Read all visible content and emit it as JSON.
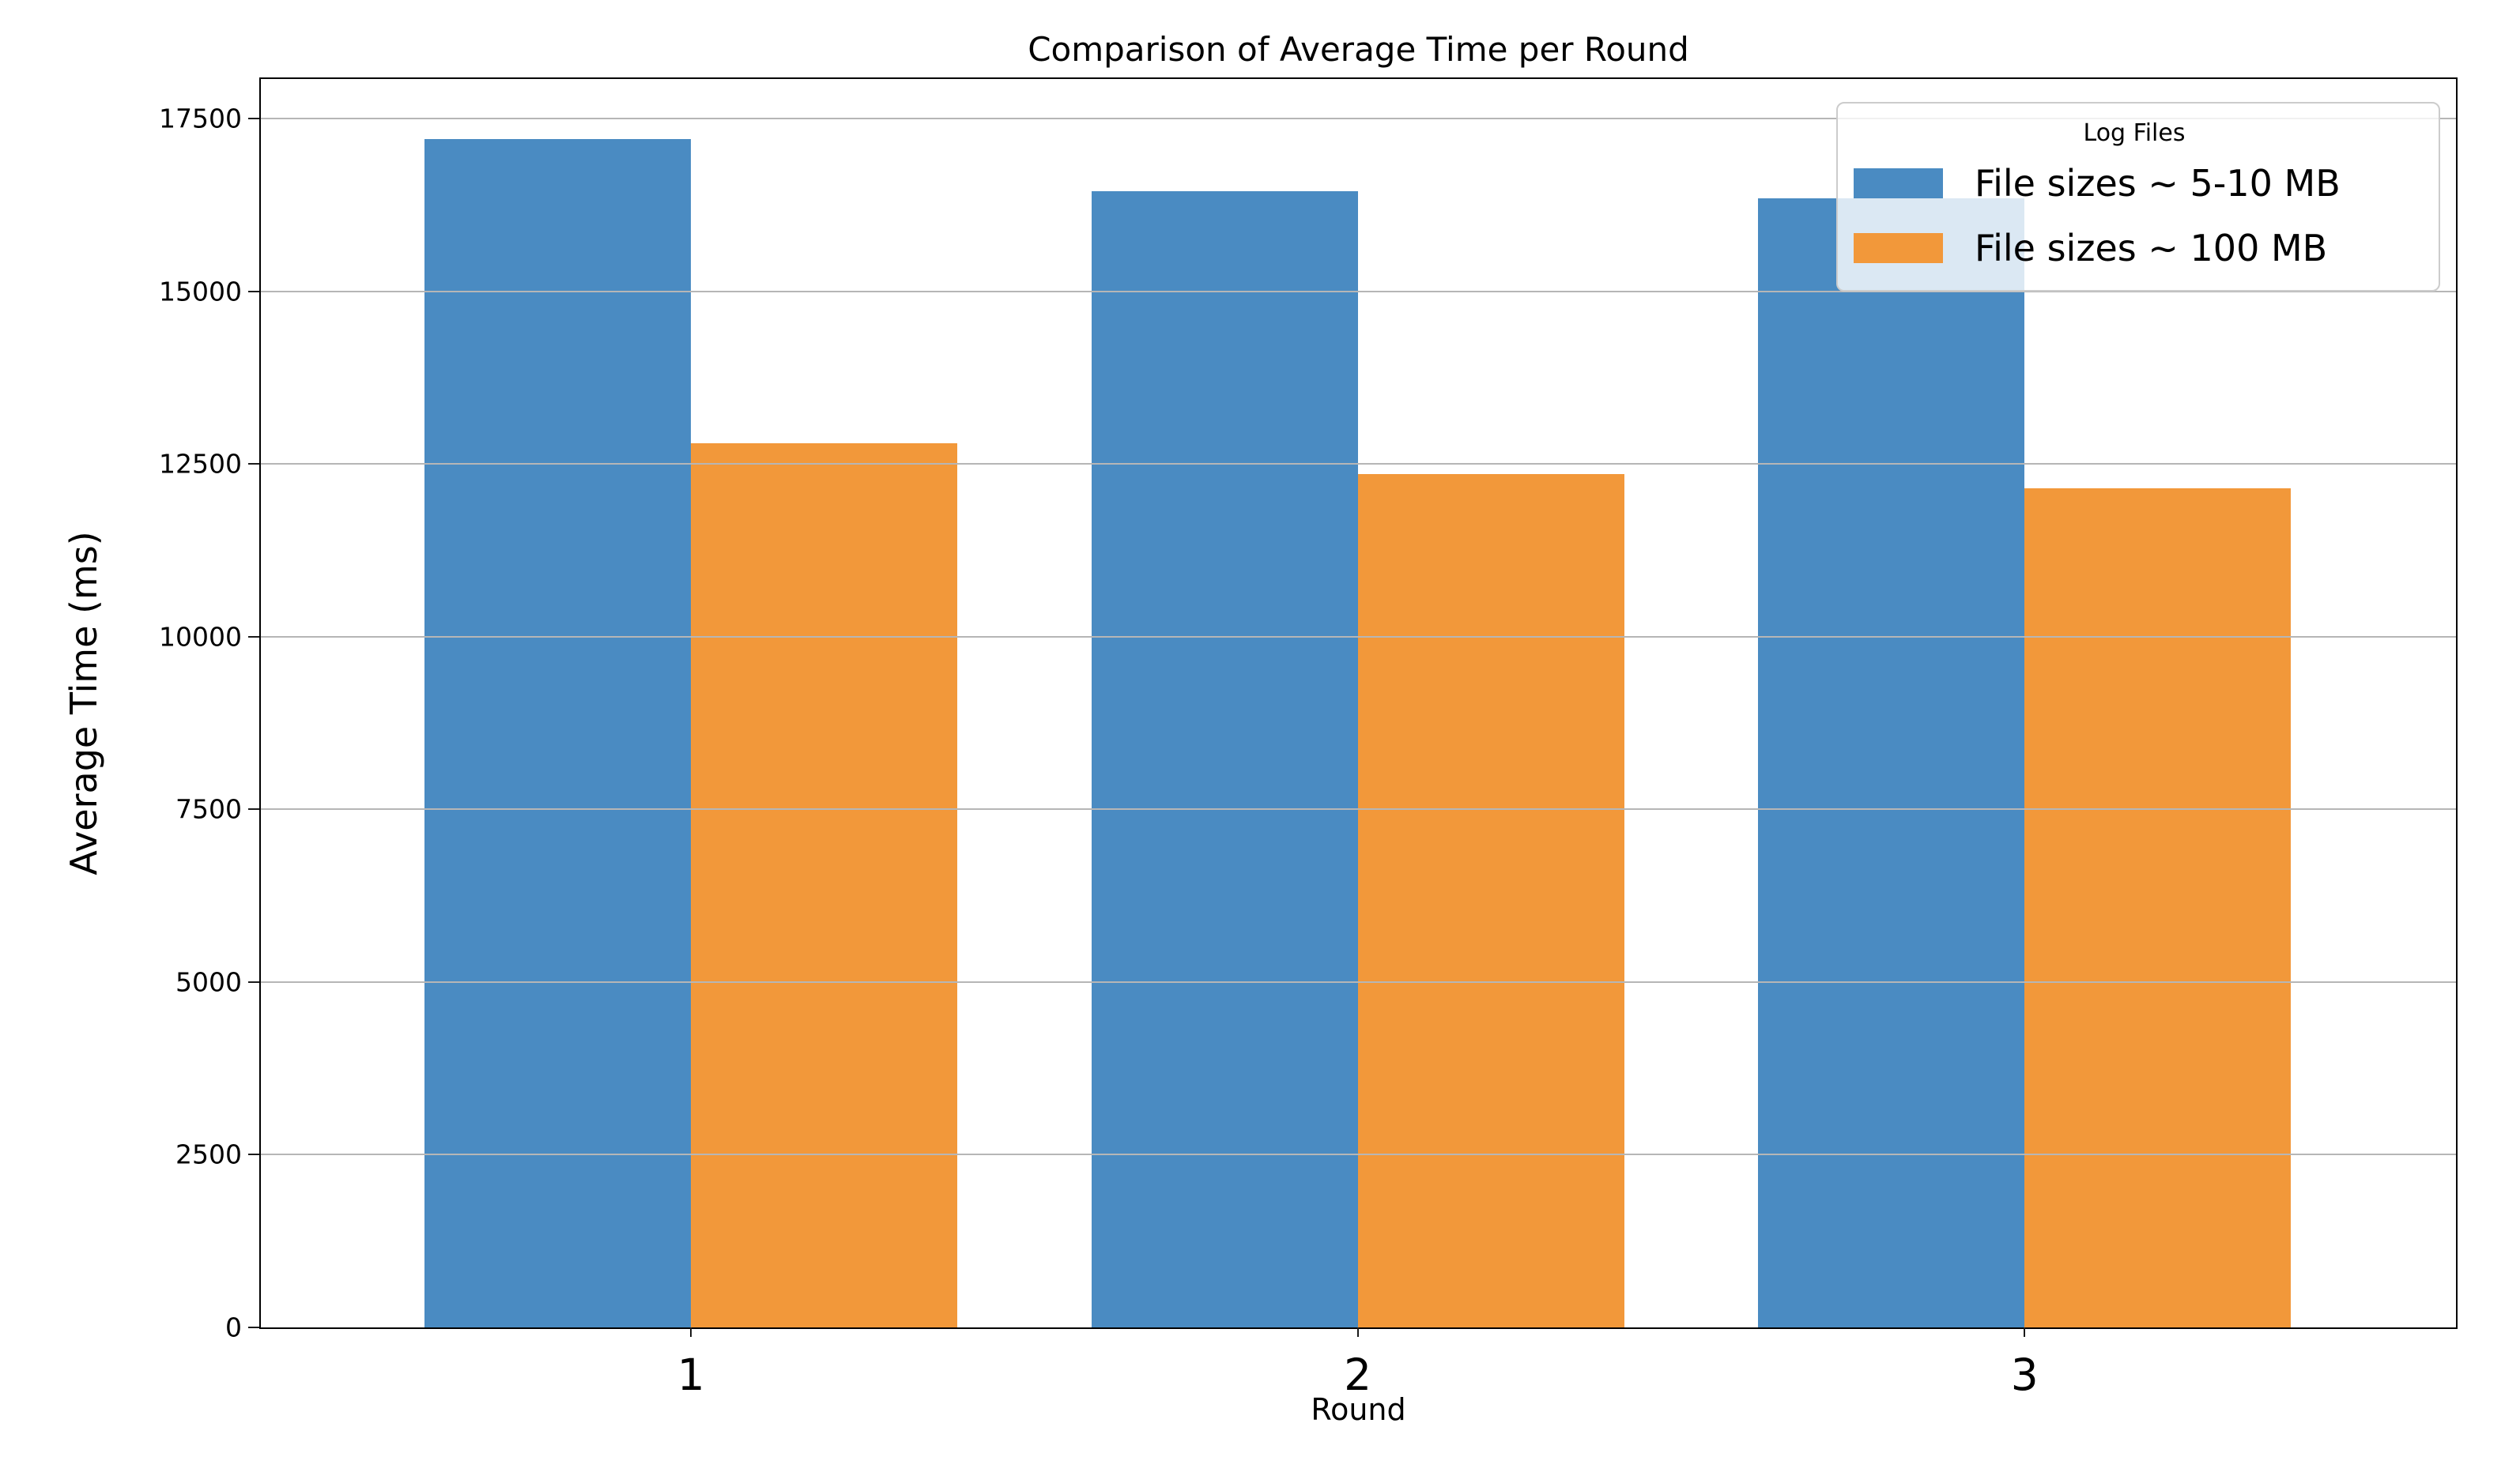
{
  "title": "Comparison of Average Time per Round",
  "axes": {
    "xlabel": "Round",
    "ylabel": "Average Time (ms)"
  },
  "legend": {
    "title": "Log Files"
  },
  "chart_data": {
    "type": "bar",
    "title": "Comparison of Average Time per Round",
    "xlabel": "Round",
    "ylabel": "Average Time (ms)",
    "categories": [
      "1",
      "2",
      "3"
    ],
    "series": [
      {
        "name": "File sizes ~ 5-10 MB",
        "color": "#4a8bc2",
        "values": [
          17200,
          16450,
          16350
        ]
      },
      {
        "name": "File sizes ~ 100 MB",
        "color": "#f2983a",
        "values": [
          12800,
          12350,
          12150
        ]
      }
    ],
    "ylim": [
      0,
      17500
    ],
    "ytick_step": 2500,
    "yticks": [
      0,
      2500,
      5000,
      7500,
      10000,
      12500,
      15000,
      17500
    ],
    "grid": true,
    "grid_above_bars": true,
    "legend_position": "upper right",
    "legend_title": "Log Files",
    "bar_width_data_units": 0.4
  },
  "colors": {
    "series_blue": "#4a8bc2",
    "series_orange": "#f2983a",
    "gridline": "#b6b6b6",
    "spine": "#000000",
    "legend_border": "#cccccc"
  }
}
